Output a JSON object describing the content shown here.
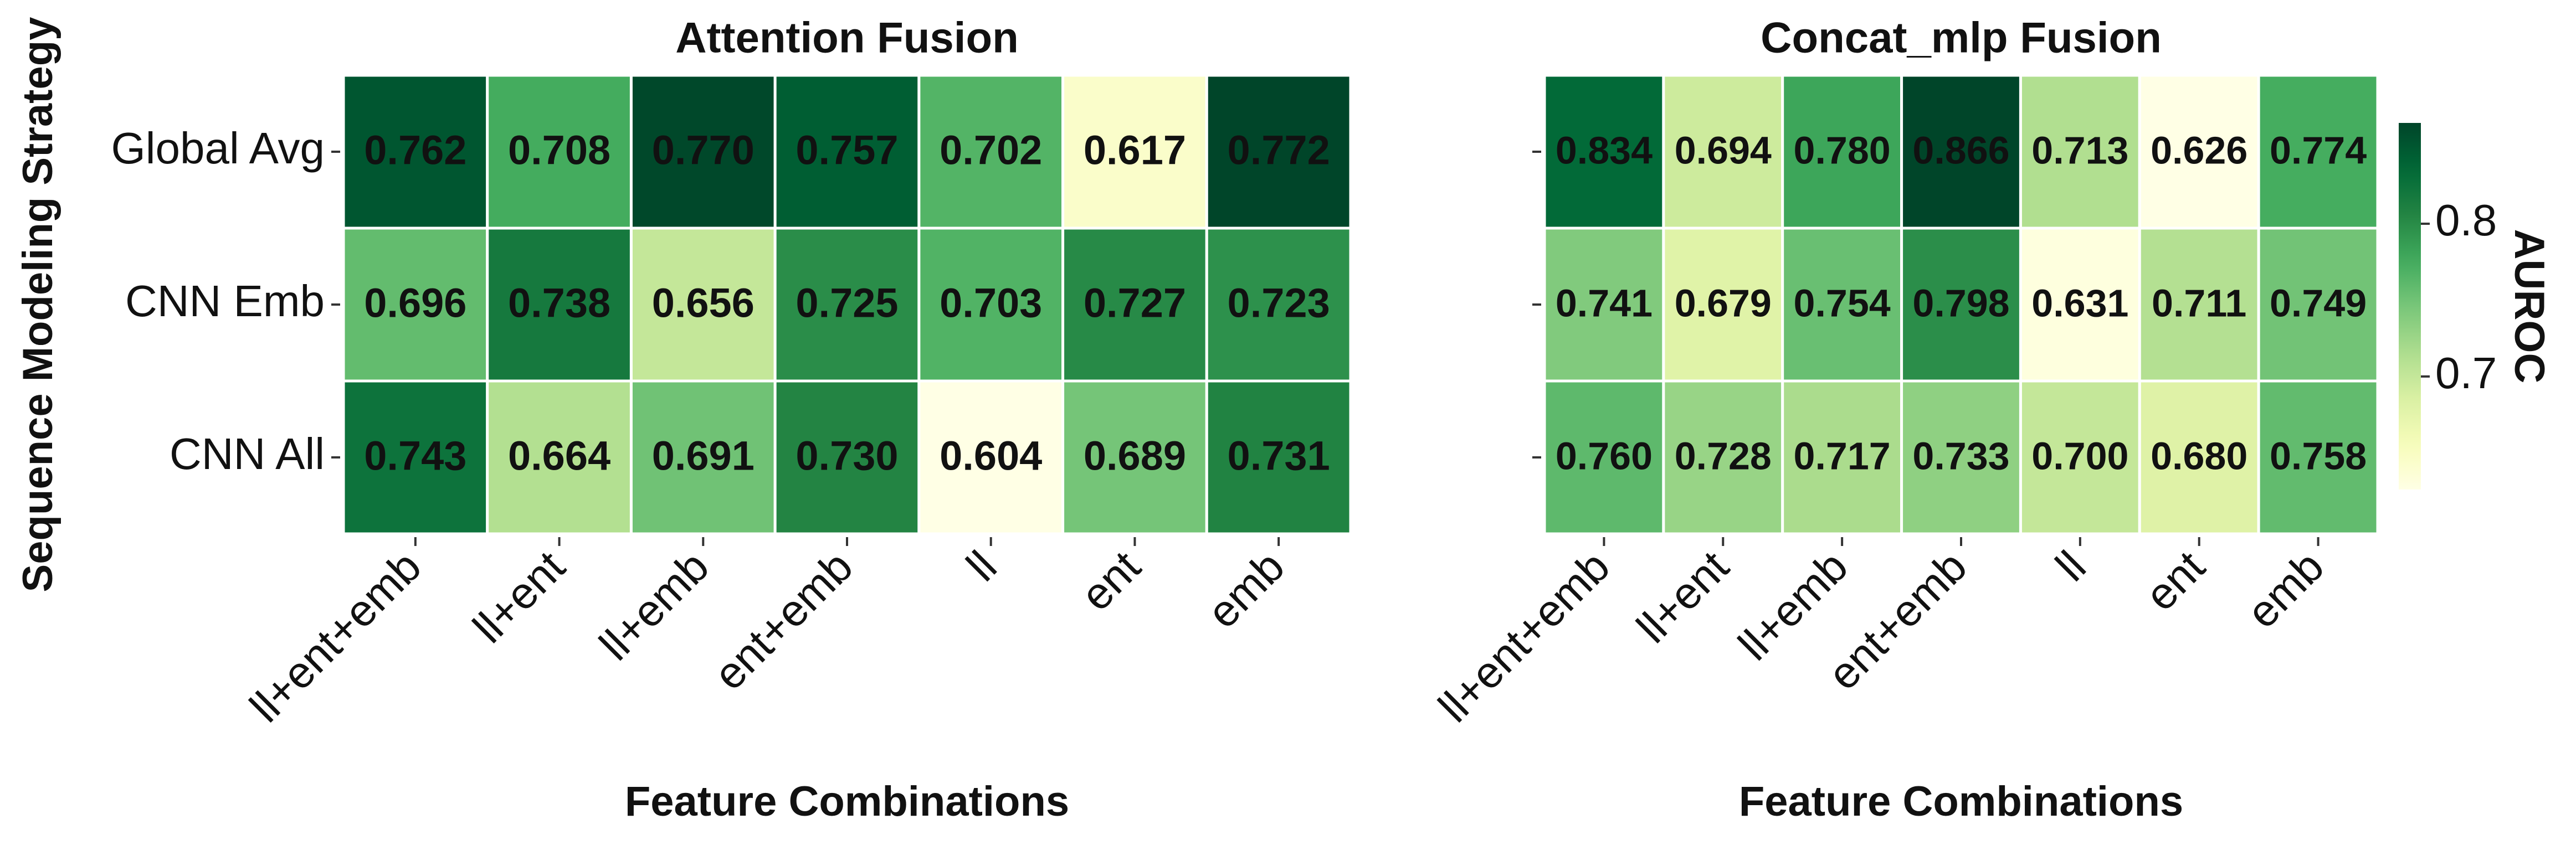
{
  "chart_data": [
    {
      "type": "heatmap",
      "title": "Attention Fusion",
      "categories": [
        "ll+ent+emb",
        "ll+ent",
        "ll+emb",
        "ent+emb",
        "ll",
        "ent",
        "emb"
      ],
      "rows": [
        "Global Avg",
        "CNN Emb",
        "CNN All"
      ],
      "xlabel": "Feature Combinations",
      "ylabel": "Sequence Modeling Strategy",
      "colormap": "YlGn",
      "values": [
        [
          0.762,
          0.708,
          0.77,
          0.757,
          0.702,
          0.617,
          0.772
        ],
        [
          0.696,
          0.738,
          0.656,
          0.725,
          0.703,
          0.727,
          0.723
        ],
        [
          0.743,
          0.664,
          0.691,
          0.73,
          0.604,
          0.689,
          0.731
        ]
      ],
      "value_labels": [
        [
          "0.762",
          "0.708",
          "0.770",
          "0.757",
          "0.702",
          "0.617",
          "0.772"
        ],
        [
          "0.696",
          "0.738",
          "0.656",
          "0.725",
          "0.703",
          "0.727",
          "0.723"
        ],
        [
          "0.743",
          "0.664",
          "0.691",
          "0.730",
          "0.604",
          "0.689",
          "0.731"
        ]
      ]
    },
    {
      "type": "heatmap",
      "title": "Concat_mlp Fusion",
      "categories": [
        "ll+ent+emb",
        "ll+ent",
        "ll+emb",
        "ent+emb",
        "ll",
        "ent",
        "emb"
      ],
      "xlabel": "Feature Combinations",
      "colormap": "YlGn",
      "values": [
        [
          0.834,
          0.694,
          0.78,
          0.866,
          0.713,
          0.626,
          0.774
        ],
        [
          0.741,
          0.679,
          0.754,
          0.798,
          0.631,
          0.711,
          0.749
        ],
        [
          0.76,
          0.728,
          0.717,
          0.733,
          0.7,
          0.68,
          0.758
        ]
      ],
      "value_labels": [
        [
          "0.834",
          "0.694",
          "0.780",
          "0.866",
          "0.713",
          "0.626",
          "0.774"
        ],
        [
          "0.741",
          "0.679",
          "0.754",
          "0.798",
          "0.631",
          "0.711",
          "0.749"
        ],
        [
          "0.760",
          "0.728",
          "0.717",
          "0.733",
          "0.700",
          "0.680",
          "0.758"
        ]
      ],
      "colorbar": {
        "label": "AUROC",
        "ticks": [
          0.7,
          0.8
        ]
      }
    }
  ]
}
